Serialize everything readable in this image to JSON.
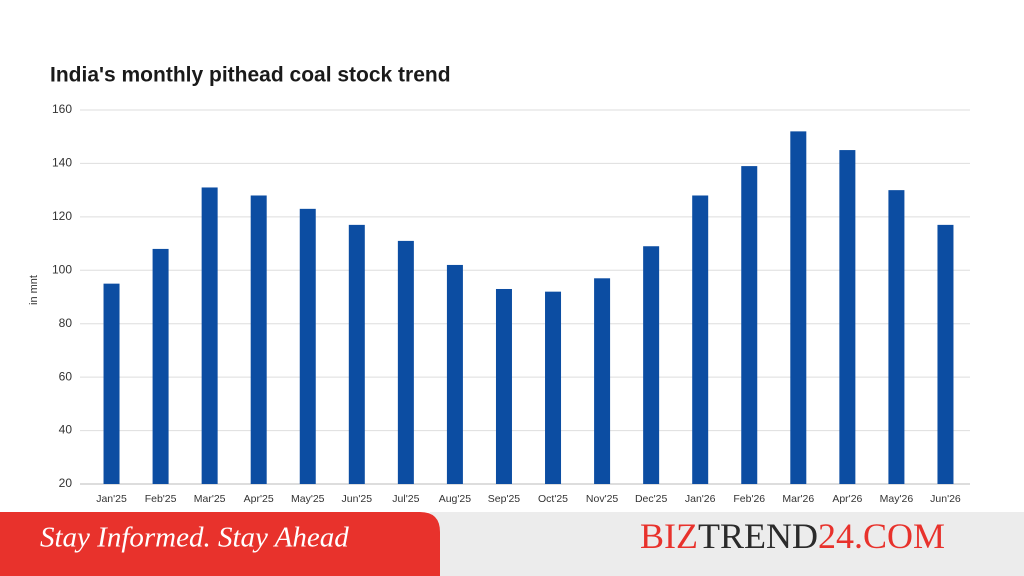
{
  "chart_data": {
    "type": "bar",
    "title": "India's monthly pithead coal stock trend",
    "y_label": "in mnt",
    "categories": [
      "Jan'25",
      "Feb'25",
      "Mar'25",
      "Apr'25",
      "May'25",
      "Jun'25",
      "Jul'25",
      "Aug'25",
      "Sep'25",
      "Oct'25",
      "Nov'25",
      "Dec'25",
      "Jan'26",
      "Feb'26",
      "Mar'26",
      "Apr'26",
      "May'26",
      "Jun'26"
    ],
    "values": [
      95,
      108,
      131,
      128,
      123,
      117,
      111,
      102,
      93,
      92,
      97,
      109,
      128,
      139,
      152,
      145,
      130,
      117
    ],
    "color": "#0c4da2",
    "ylim": [
      20,
      160
    ],
    "yticks": [
      20,
      40,
      60,
      80,
      100,
      120,
      140,
      160
    ],
    "grid": true
  },
  "footer": {
    "tagline": "Stay Informed. Stay Ahead",
    "brand": [
      "BIZ",
      "TREND",
      "24.COM"
    ]
  }
}
